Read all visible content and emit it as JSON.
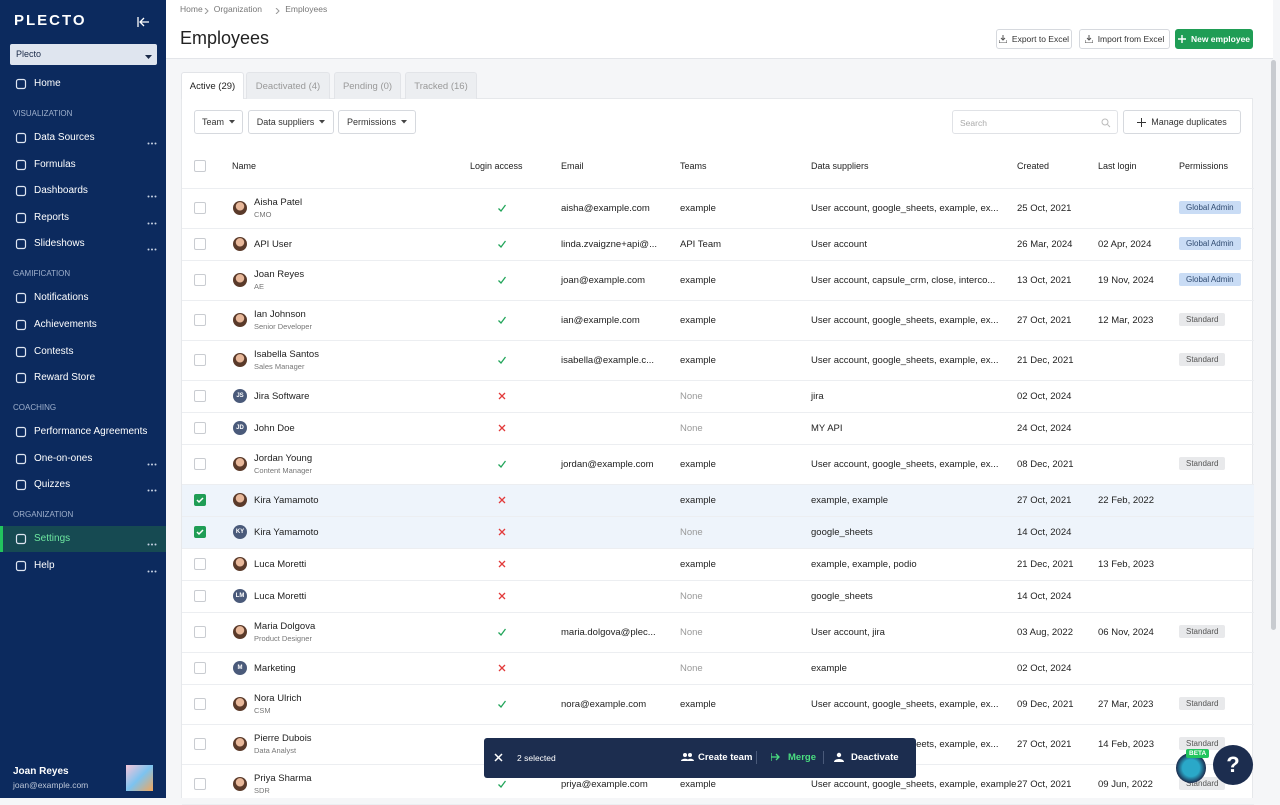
{
  "sidebar": {
    "logo": "PLECTO",
    "org": "Plecto",
    "home": "Home",
    "sections": [
      {
        "title": "VISUALIZATION",
        "items": [
          {
            "label": "Data Sources",
            "more": true
          },
          {
            "label": "Formulas"
          },
          {
            "label": "Dashboards",
            "more": true
          },
          {
            "label": "Reports",
            "more": true
          },
          {
            "label": "Slideshows",
            "more": true
          }
        ]
      },
      {
        "title": "GAMIFICATION",
        "items": [
          {
            "label": "Notifications"
          },
          {
            "label": "Achievements"
          },
          {
            "label": "Contests"
          },
          {
            "label": "Reward Store"
          }
        ]
      },
      {
        "title": "COACHING",
        "items": [
          {
            "label": "Performance Agreements"
          },
          {
            "label": "One-on-ones",
            "more": true
          },
          {
            "label": "Quizzes",
            "more": true
          }
        ]
      },
      {
        "title": "ORGANIZATION",
        "items": [
          {
            "label": "Settings",
            "more": true,
            "active": true
          },
          {
            "label": "Help",
            "more": true
          }
        ]
      }
    ],
    "user": {
      "name": "Joan Reyes",
      "email": "joan@example.com"
    }
  },
  "header": {
    "breadcrumbs": [
      "Home",
      "Organization",
      "Employees"
    ],
    "title": "Employees",
    "buttons": [
      "Export to Excel",
      "Import from Excel",
      "New employee"
    ]
  },
  "tabs": [
    {
      "label": "Active (29)",
      "active": true
    },
    {
      "label": "Deactivated (4)"
    },
    {
      "label": "Pending (0)"
    },
    {
      "label": "Tracked (16)"
    }
  ],
  "filters": [
    "Team",
    "Data suppliers",
    "Permissions"
  ],
  "search": "Search",
  "duplicates": "Manage duplicates",
  "table": {
    "columns": [
      "Name",
      "Login access",
      "Email",
      "Teams",
      "Data suppliers",
      "Created",
      "Last login",
      "Permissions"
    ],
    "rows": [
      {
        "name": "Aisha Patel",
        "role": "CMO",
        "login": true,
        "email": "aisha@example.com",
        "teams": "example",
        "suppliers": "User account, google_sheets, example, ex...",
        "created": "25 Oct, 2021",
        "permission": "Global Admin"
      },
      {
        "name": "API User",
        "login": true,
        "email": "linda.zvaigzne+api@...",
        "teams": "API Team",
        "suppliers": "User account",
        "created": "26 Mar, 2024",
        "last_login": "02 Apr, 2024",
        "permission": "Global Admin"
      },
      {
        "name": "Joan Reyes",
        "role": "AE",
        "login": true,
        "email": "joan@example.com",
        "teams": "example",
        "suppliers": "User account, capsule_crm, close, interco...",
        "created": "13 Oct, 2021",
        "last_login": "19 Nov, 2024",
        "permission": "Global Admin"
      },
      {
        "name": "Ian Johnson",
        "role": "Senior Developer",
        "login": true,
        "email": "ian@example.com",
        "teams": "example",
        "suppliers": "User account, google_sheets, example, ex...",
        "created": "27 Oct, 2021",
        "last_login": "12 Mar, 2023",
        "permission": "Standard"
      },
      {
        "name": "Isabella Santos",
        "role": "Sales Manager",
        "login": true,
        "email": "isabella@example.c...",
        "teams": "example",
        "suppliers": "User account, google_sheets, example, ex...",
        "created": "21 Dec, 2021",
        "permission": "Standard"
      },
      {
        "name": "Jira Software",
        "initials": "JS",
        "login": false,
        "teams": "None",
        "suppliers": "jira",
        "created": "02 Oct, 2024"
      },
      {
        "name": "John Doe",
        "initials": "JD",
        "login": false,
        "teams": "None",
        "suppliers": "MY API",
        "created": "24 Oct, 2024"
      },
      {
        "name": "Jordan Young",
        "role": "Content Manager",
        "login": true,
        "email": "jordan@example.com",
        "teams": "example",
        "suppliers": "User account, google_sheets, example, ex...",
        "created": "08 Dec, 2021",
        "permission": "Standard"
      },
      {
        "name": "Kira Yamamoto",
        "checked": true,
        "login": false,
        "teams": "example",
        "suppliers": "example, example",
        "created": "27 Oct, 2021",
        "last_login": "22 Feb, 2022"
      },
      {
        "name": "Kira Yamamoto",
        "initials": "KY",
        "checked": true,
        "login": false,
        "teams": "None",
        "suppliers": "google_sheets",
        "created": "14 Oct, 2024"
      },
      {
        "name": "Luca Moretti",
        "login": false,
        "teams": "example",
        "suppliers": "example, example, podio",
        "created": "21 Dec, 2021",
        "last_login": "13 Feb, 2023"
      },
      {
        "name": "Luca Moretti",
        "initials": "LM",
        "login": false,
        "teams": "None",
        "suppliers": "google_sheets",
        "created": "14 Oct, 2024"
      },
      {
        "name": "Maria Dolgova",
        "role": "Product Designer",
        "login": true,
        "email": "maria.dolgova@plec...",
        "teams": "None",
        "suppliers": "User account, jira",
        "created": "03 Aug, 2022",
        "last_login": "06 Nov, 2024",
        "permission": "Standard"
      },
      {
        "name": "Marketing",
        "initials": "M",
        "login": false,
        "teams": "None",
        "suppliers": "example",
        "created": "02 Oct, 2024"
      },
      {
        "name": "Nora Ulrich",
        "role": "CSM",
        "login": true,
        "email": "nora@example.com",
        "teams": "example",
        "suppliers": "User account, google_sheets, example, ex...",
        "created": "09 Dec, 2021",
        "last_login": "27 Mar, 2023",
        "permission": "Standard"
      },
      {
        "name": "Pierre Dubois",
        "role": "Data Analyst",
        "login": true,
        "suppliers": "User account, google_sheets, example, ex...",
        "created": "27 Oct, 2021",
        "last_login": "14 Feb, 2023",
        "permission": "Standard"
      },
      {
        "name": "Priya Sharma",
        "role": "SDR",
        "login": true,
        "email": "priya@example.com",
        "teams": "example",
        "suppliers": "User account, google_sheets, example, example",
        "created": "27 Oct, 2021",
        "last_login": "09 Jun, 2022",
        "permission": "Standard"
      }
    ]
  },
  "selection": {
    "count": "2 selected",
    "actions": [
      "Create team",
      "Merge",
      "Deactivate"
    ]
  },
  "help": {
    "badge": "BETA",
    "label": "?"
  }
}
